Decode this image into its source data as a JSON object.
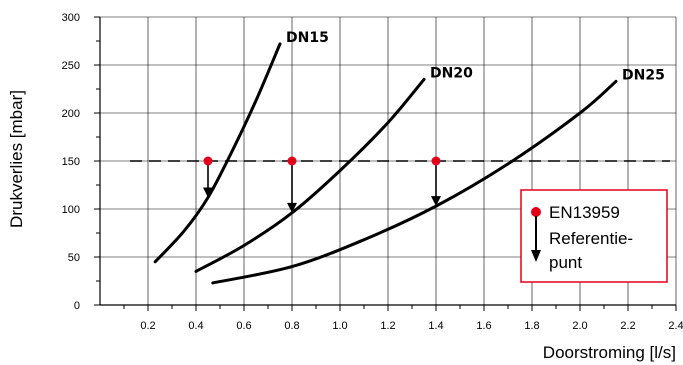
{
  "chart_data": {
    "type": "line",
    "xlabel": "Doorstroming [l/s]",
    "ylabel": "Drukverlies [mbar]",
    "xlim": [
      0,
      2.4
    ],
    "ylim": [
      0,
      300
    ],
    "x_ticks": [
      "0.2",
      "0.4",
      "0.6",
      "0.8",
      "1.0",
      "1.2",
      "1.4",
      "1.6",
      "1.8",
      "2.0",
      "2.2",
      "2.4"
    ],
    "y_ticks": [
      "0",
      "50",
      "100",
      "150",
      "200",
      "250",
      "300"
    ],
    "grid": true,
    "series": [
      {
        "name": "DN15",
        "x": [
          0.23,
          0.35,
          0.45,
          0.55,
          0.65,
          0.75
        ],
        "y": [
          45,
          77,
          112,
          160,
          213,
          272
        ]
      },
      {
        "name": "DN20",
        "x": [
          0.4,
          0.6,
          0.8,
          1.0,
          1.2,
          1.35
        ],
        "y": [
          35,
          62,
          96,
          140,
          190,
          235
        ]
      },
      {
        "name": "DN25",
        "x": [
          0.47,
          0.8,
          1.1,
          1.4,
          1.7,
          2.0,
          2.15
        ],
        "y": [
          23,
          40,
          68,
          103,
          147,
          200,
          233
        ]
      }
    ],
    "reference_line": {
      "y": 150,
      "style": "dashed"
    },
    "reference_points": [
      {
        "x": 0.45,
        "y": 150,
        "arrow_to_y": 112
      },
      {
        "x": 0.8,
        "y": 150,
        "arrow_to_y": 96
      },
      {
        "x": 1.4,
        "y": 150,
        "arrow_to_y": 103
      }
    ],
    "legend": {
      "position": "bottom-right",
      "line1": "EN13959",
      "line2": "Referentie-",
      "line3": "punt"
    },
    "colors": {
      "point": "#e3001b",
      "legend_border": "#e3001b",
      "curve": "#000000",
      "grid": "#000000"
    }
  }
}
